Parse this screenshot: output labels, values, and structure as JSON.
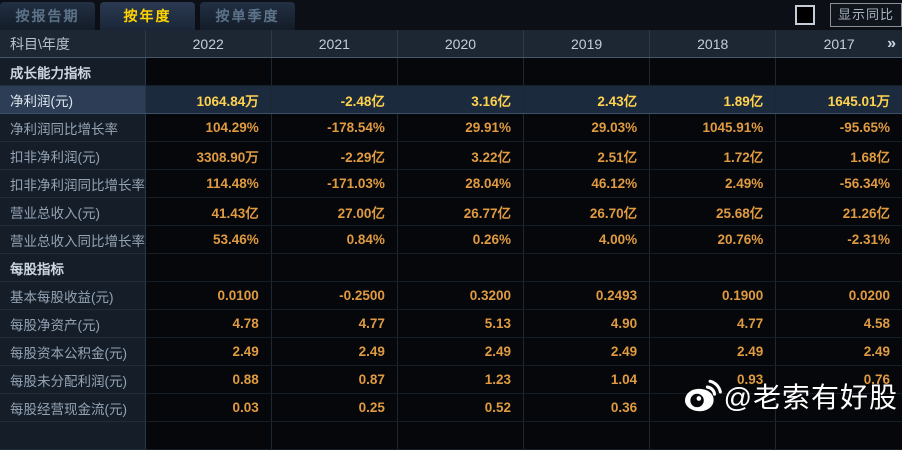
{
  "tabs": [
    {
      "label": "按报告期",
      "active": false
    },
    {
      "label": "按年度",
      "active": true
    },
    {
      "label": "按单季度",
      "active": false
    }
  ],
  "controls": {
    "show_yoy_label": "显示同比",
    "show_yoy_checked": false
  },
  "table": {
    "corner_label": "科目\\年度",
    "years": [
      "2022",
      "2021",
      "2020",
      "2019",
      "2018",
      "2017"
    ],
    "more_years_icon": "»",
    "rows": [
      {
        "type": "section",
        "label": "成长能力指标"
      },
      {
        "type": "data",
        "highlight": true,
        "label": "净利润(元)",
        "values": [
          "1064.84万",
          "-2.48亿",
          "3.16亿",
          "2.43亿",
          "1.89亿",
          "1645.01万"
        ]
      },
      {
        "type": "data",
        "highlight": false,
        "label": "净利润同比增长率",
        "values": [
          "104.29%",
          "-178.54%",
          "29.91%",
          "29.03%",
          "1045.91%",
          "-95.65%"
        ]
      },
      {
        "type": "data",
        "highlight": false,
        "label": "扣非净利润(元)",
        "values": [
          "3308.90万",
          "-2.29亿",
          "3.22亿",
          "2.51亿",
          "1.72亿",
          "1.68亿"
        ]
      },
      {
        "type": "data",
        "highlight": false,
        "label": "扣非净利润同比增长率",
        "values": [
          "114.48%",
          "-171.03%",
          "28.04%",
          "46.12%",
          "2.49%",
          "-56.34%"
        ]
      },
      {
        "type": "data",
        "highlight": false,
        "label": "营业总收入(元)",
        "values": [
          "41.43亿",
          "27.00亿",
          "26.77亿",
          "26.70亿",
          "25.68亿",
          "21.26亿"
        ]
      },
      {
        "type": "data",
        "highlight": false,
        "label": "营业总收入同比增长率",
        "values": [
          "53.46%",
          "0.84%",
          "0.26%",
          "4.00%",
          "20.76%",
          "-2.31%"
        ]
      },
      {
        "type": "section",
        "label": "每股指标"
      },
      {
        "type": "data",
        "highlight": false,
        "label": "基本每股收益(元)",
        "values": [
          "0.0100",
          "-0.2500",
          "0.3200",
          "0.2493",
          "0.1900",
          "0.0200"
        ]
      },
      {
        "type": "data",
        "highlight": false,
        "label": "每股净资产(元)",
        "values": [
          "4.78",
          "4.77",
          "5.13",
          "4.90",
          "4.77",
          "4.58"
        ]
      },
      {
        "type": "data",
        "highlight": false,
        "label": "每股资本公积金(元)",
        "values": [
          "2.49",
          "2.49",
          "2.49",
          "2.49",
          "2.49",
          "2.49"
        ]
      },
      {
        "type": "data",
        "highlight": false,
        "label": "每股未分配利润(元)",
        "values": [
          "0.88",
          "0.87",
          "1.23",
          "1.04",
          "0.93",
          "0.76"
        ]
      },
      {
        "type": "data",
        "highlight": false,
        "label": "每股经营现金流(元)",
        "values": [
          "0.03",
          "0.25",
          "0.52",
          "0.36",
          "",
          ""
        ]
      }
    ]
  },
  "watermark": {
    "text": "@老索有好股",
    "icon": "weibo-icon"
  },
  "colors": {
    "value_orange": "#e09a41",
    "highlight_yellow": "#ffd24f",
    "active_tab_yellow": "#ffd400",
    "header_bg": "#1d2734",
    "highlight_row_bg": "#1c2a3d",
    "label_col_bg": "#151d28",
    "value_cell_bg": "#05070a",
    "watermark_white": "#ffffff"
  }
}
